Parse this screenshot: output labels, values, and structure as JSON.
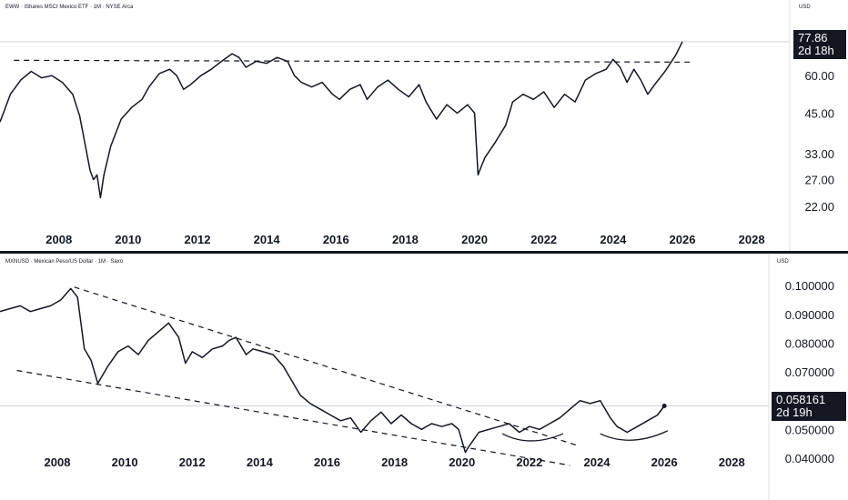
{
  "chart_data": [
    {
      "type": "line",
      "title": "EWW · iShares MSCI Mexico ETF · 1M · NYSE Arca",
      "currency": "USD",
      "y_scale": "log",
      "ylim": [
        19,
        80
      ],
      "xlim": [
        2006.3,
        2029.1
      ],
      "x_ticks": [
        "2008",
        "2010",
        "2012",
        "2014",
        "2016",
        "2018",
        "2020",
        "2022",
        "2024",
        "2026",
        "2028"
      ],
      "y_ticks": [
        "22.00",
        "27.00",
        "33.00",
        "45.00",
        "60.00"
      ],
      "last_value": "77.86",
      "countdown": "2d 18h",
      "grid": false,
      "series": [
        {
          "x": [
            2006.3,
            2006.6,
            2006.9,
            2007.2,
            2007.5,
            2007.8,
            2008.1,
            2008.4,
            2008.6,
            2008.9,
            2009.0,
            2009.1,
            2009.2,
            2009.3,
            2009.5,
            2009.8,
            2010.1,
            2010.4,
            2010.6,
            2010.9,
            2011.2,
            2011.4,
            2011.6,
            2011.8,
            2012.1,
            2012.4,
            2012.7,
            2013.0,
            2013.2,
            2013.4,
            2013.7,
            2014.0,
            2014.3,
            2014.6,
            2014.8,
            2015.0,
            2015.3,
            2015.6,
            2015.9,
            2016.1,
            2016.4,
            2016.7,
            2016.9,
            2017.2,
            2017.5,
            2017.8,
            2018.1,
            2018.4,
            2018.6,
            2018.9,
            2019.2,
            2019.5,
            2019.8,
            2020.0,
            2020.1,
            2020.2,
            2020.3,
            2020.6,
            2020.9,
            2021.1,
            2021.4,
            2021.7,
            2022.0,
            2022.3,
            2022.6,
            2022.9,
            2023.2,
            2023.5,
            2023.8,
            2024.0,
            2024.2,
            2024.4,
            2024.6,
            2024.8,
            2025.0,
            2025.2,
            2025.5,
            2025.8,
            2026.0
          ],
          "y": [
            42,
            52,
            58,
            62,
            59,
            60,
            57,
            52,
            44,
            29,
            27,
            28,
            23.5,
            28,
            35,
            43,
            47,
            50,
            55,
            61,
            63,
            60,
            54,
            56,
            60,
            63,
            67,
            71,
            69,
            64,
            67,
            66,
            69,
            67,
            60,
            57,
            55,
            57,
            52,
            50,
            54,
            56,
            50,
            55,
            58,
            54,
            51,
            56,
            49,
            43,
            48,
            45,
            48,
            45,
            28,
            30,
            32,
            36,
            41,
            49,
            52,
            50,
            53,
            47,
            52,
            49,
            58,
            61,
            63,
            68,
            64,
            57,
            63,
            58,
            52,
            56,
            62,
            70,
            77.86
          ]
        }
      ],
      "annotations": [
        {
          "type": "horizontal-dashed",
          "y": 67.5
        }
      ]
    },
    {
      "type": "line",
      "title": "MXNUSD · Mexican Peso/US Dollar · 1M · Saxo",
      "currency": "USD",
      "ylim": [
        0.0365,
        0.1045
      ],
      "xlim": [
        2006.3,
        2029.1
      ],
      "x_ticks": [
        "2008",
        "2010",
        "2012",
        "2014",
        "2016",
        "2018",
        "2020",
        "2022",
        "2024",
        "2026",
        "2028"
      ],
      "y_ticks": [
        "0.040000",
        "0.050000",
        "0.060000",
        "0.070000",
        "0.080000",
        "0.090000",
        "0.100000"
      ],
      "last_value": "0.058161",
      "countdown": "2d 19h",
      "grid": false,
      "series": [
        {
          "x": [
            2006.3,
            2006.6,
            2006.9,
            2007.2,
            2007.5,
            2007.8,
            2008.1,
            2008.4,
            2008.6,
            2008.8,
            2009.0,
            2009.2,
            2009.5,
            2009.8,
            2010.1,
            2010.4,
            2010.7,
            2011.0,
            2011.3,
            2011.6,
            2011.8,
            2012.0,
            2012.3,
            2012.6,
            2012.9,
            2013.1,
            2013.3,
            2013.6,
            2013.8,
            2014.1,
            2014.4,
            2014.7,
            2014.9,
            2015.2,
            2015.5,
            2015.8,
            2016.1,
            2016.4,
            2016.7,
            2017.0,
            2017.3,
            2017.6,
            2017.9,
            2018.2,
            2018.5,
            2018.8,
            2019.1,
            2019.4,
            2019.7,
            2019.9,
            2020.1,
            2020.2,
            2020.5,
            2020.8,
            2021.1,
            2021.4,
            2021.7,
            2022.0,
            2022.3,
            2022.6,
            2022.9,
            2023.2,
            2023.5,
            2023.8,
            2024.1,
            2024.4,
            2024.6,
            2024.9,
            2025.2,
            2025.5,
            2025.8,
            2026.0
          ],
          "y": [
            0.091,
            0.092,
            0.093,
            0.091,
            0.092,
            0.093,
            0.095,
            0.099,
            0.096,
            0.078,
            0.074,
            0.066,
            0.072,
            0.077,
            0.079,
            0.076,
            0.081,
            0.084,
            0.087,
            0.082,
            0.073,
            0.077,
            0.075,
            0.078,
            0.079,
            0.081,
            0.082,
            0.076,
            0.078,
            0.077,
            0.076,
            0.072,
            0.068,
            0.062,
            0.059,
            0.057,
            0.055,
            0.053,
            0.054,
            0.049,
            0.053,
            0.056,
            0.052,
            0.055,
            0.052,
            0.05,
            0.052,
            0.051,
            0.052,
            0.05,
            0.042,
            0.044,
            0.049,
            0.05,
            0.051,
            0.052,
            0.049,
            0.051,
            0.05,
            0.052,
            0.054,
            0.057,
            0.06,
            0.059,
            0.06,
            0.054,
            0.051,
            0.049,
            0.051,
            0.053,
            0.055,
            0.058161
          ]
        }
      ],
      "annotations": [
        {
          "type": "dashed-line",
          "from": [
            2008.5,
            0.0995
          ],
          "to": [
            2023.4,
            0.0445
          ]
        },
        {
          "type": "dashed-line",
          "from": [
            2006.8,
            0.0705
          ],
          "to": [
            2023.2,
            0.0375
          ]
        }
      ]
    }
  ]
}
